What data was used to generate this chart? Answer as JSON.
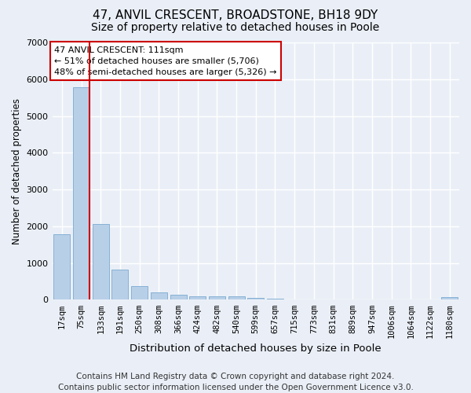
{
  "title": "47, ANVIL CRESCENT, BROADSTONE, BH18 9DY",
  "subtitle": "Size of property relative to detached houses in Poole",
  "xlabel": "Distribution of detached houses by size in Poole",
  "ylabel": "Number of detached properties",
  "categories": [
    "17sqm",
    "75sqm",
    "133sqm",
    "191sqm",
    "250sqm",
    "308sqm",
    "366sqm",
    "424sqm",
    "482sqm",
    "540sqm",
    "599sqm",
    "657sqm",
    "715sqm",
    "773sqm",
    "831sqm",
    "889sqm",
    "947sqm",
    "1006sqm",
    "1064sqm",
    "1122sqm",
    "1180sqm"
  ],
  "values": [
    1780,
    5780,
    2060,
    820,
    370,
    205,
    130,
    105,
    95,
    90,
    55,
    30,
    20,
    10,
    10,
    5,
    5,
    5,
    5,
    5,
    80
  ],
  "bar_color": "#b8cfe8",
  "bar_edge_color": "#7aaacf",
  "vline_color": "#cc0000",
  "vline_x": 1.42,
  "annotation_text": "47 ANVIL CRESCENT: 111sqm\n← 51% of detached houses are smaller (5,706)\n48% of semi-detached houses are larger (5,326) →",
  "annotation_box_color": "#ffffff",
  "annotation_box_edge": "#cc0000",
  "ylim": [
    0,
    7000
  ],
  "yticks": [
    0,
    1000,
    2000,
    3000,
    4000,
    5000,
    6000,
    7000
  ],
  "bg_color": "#eaeff7",
  "plot_bg_color": "#eaeff7",
  "grid_color": "#ffffff",
  "footer": "Contains HM Land Registry data © Crown copyright and database right 2024.\nContains public sector information licensed under the Open Government Licence v3.0.",
  "title_fontsize": 11,
  "subtitle_fontsize": 10,
  "xlabel_fontsize": 9.5,
  "ylabel_fontsize": 8.5,
  "footer_fontsize": 7.5,
  "tick_fontsize": 8,
  "xtick_fontsize": 7.5
}
